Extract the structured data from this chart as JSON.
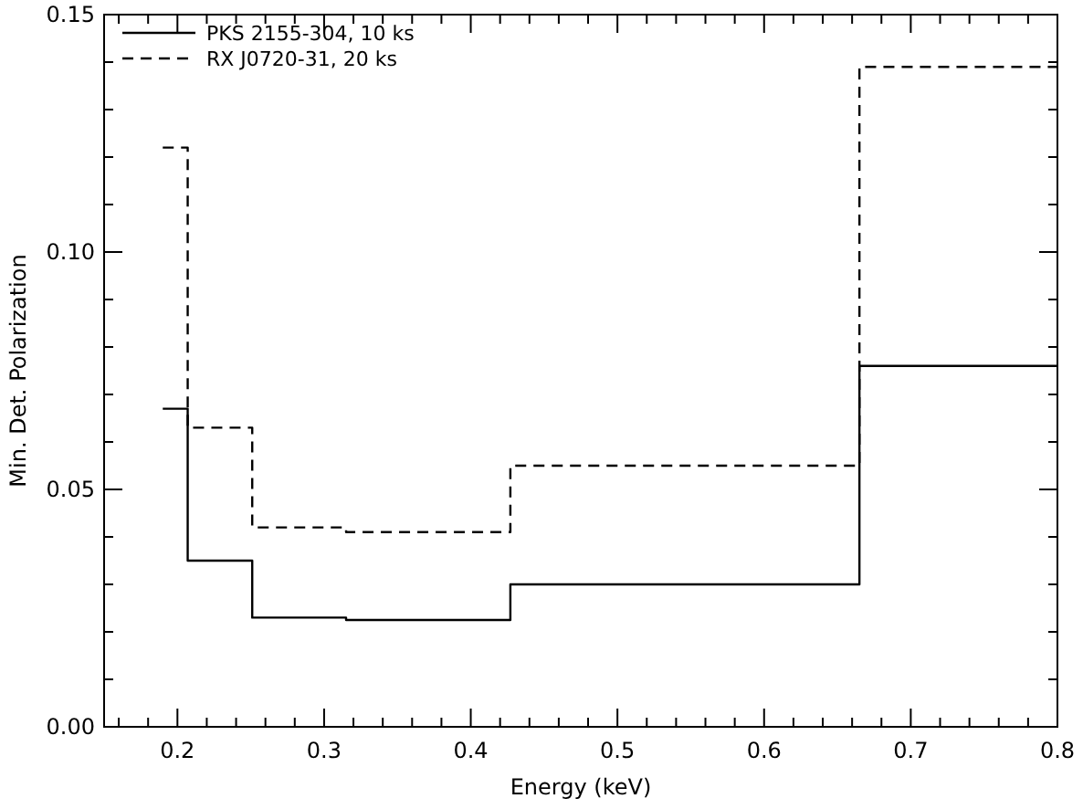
{
  "chart_data": {
    "type": "step",
    "xlabel": "Energy (keV)",
    "ylabel": "Min. Det. Polarization",
    "xlim": [
      0.15,
      0.8
    ],
    "ylim": [
      0,
      0.15
    ],
    "xticks": [
      0.2,
      0.3,
      0.4,
      0.5,
      0.6,
      0.7,
      0.8
    ],
    "yticks": [
      {
        "value": 0,
        "label": "0.00"
      },
      {
        "value": 0.05,
        "label": "0.05"
      },
      {
        "value": 0.1,
        "label": "0.10"
      },
      {
        "value": 0.15,
        "label": "0.15"
      }
    ],
    "legend": "top left",
    "grid": false,
    "series": [
      {
        "name": "PKS 2155-304, 10 ks",
        "color": "#000000",
        "line_style": "solid",
        "x": [
          0.19,
          0.207,
          0.251,
          0.315,
          0.427,
          0.665,
          0.8
        ],
        "values": [
          0.067,
          0.035,
          0.023,
          0.0225,
          0.03,
          0.076,
          0.076
        ]
      },
      {
        "name": "RX J0720-31, 20 ks",
        "color": "#000000",
        "line_style": "dashed",
        "x": [
          0.19,
          0.207,
          0.251,
          0.315,
          0.427,
          0.665,
          0.8
        ],
        "values": [
          0.122,
          0.063,
          0.042,
          0.041,
          0.055,
          0.139,
          0.139
        ]
      }
    ]
  }
}
